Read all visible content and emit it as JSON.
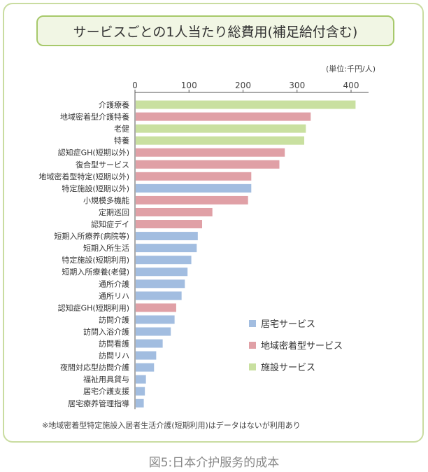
{
  "title": "サービスごとの1人当たり総費用(補足給付含む)",
  "unit_label": "(単位:千円/人)",
  "footnote": "※地域密着型特定施設入居者生活介護(短期利用)はデータはないが利用あり",
  "caption": "図5:日本介护服务的成本",
  "colors": {
    "home": "#a2bde0",
    "community": "#e0a0a6",
    "facility": "#c9e0a0",
    "title_border": "#a7c96b",
    "card_border": "#c9dca0"
  },
  "legend": [
    {
      "key": "home",
      "label": "居宅サービス"
    },
    {
      "key": "community",
      "label": "地域密着型サービス"
    },
    {
      "key": "facility",
      "label": "施設サービス"
    }
  ],
  "chart_data": {
    "type": "bar",
    "orientation": "horizontal",
    "title": "サービスごとの1人当たり総費用(補足給付含む)",
    "unit": "千円/人",
    "xlim": [
      0,
      440
    ],
    "xticks": [
      0,
      100,
      200,
      300,
      400
    ],
    "legend_position": "bottom-right",
    "grid": false,
    "categories": [
      "介護療養",
      "地域密着型介護特養",
      "老健",
      "特養",
      "認知症GH(短期以外)",
      "復合型サービス",
      "地域密着型特定(短期以外)",
      "特定施設(短期以外)",
      "小規模多機能",
      "定期巡回",
      "認知症デイ",
      "短期入所療养(病院等)",
      "短期入所生活",
      "特定施設(短期利用)",
      "短期入所療養(老健)",
      "通所介護",
      "通所リハ",
      "認知症GH(短期利用)",
      "訪問介護",
      "訪問入浴介護",
      "訪問看護",
      "訪問リハ",
      "夜間対応型訪問介護",
      "福祉用具貸与",
      "居宅介護支援",
      "居宅療养管理指導"
    ],
    "values": [
      407,
      324,
      315,
      312,
      276,
      266,
      214,
      214,
      208,
      142,
      123,
      115,
      113,
      103,
      96,
      91,
      85,
      75,
      72,
      65,
      50,
      38,
      34,
      19,
      17,
      15
    ],
    "groups": [
      "facility",
      "community",
      "facility",
      "facility",
      "community",
      "community",
      "community",
      "home",
      "community",
      "community",
      "community",
      "home",
      "home",
      "home",
      "home",
      "home",
      "home",
      "community",
      "home",
      "home",
      "home",
      "home",
      "home",
      "home",
      "home",
      "home"
    ]
  }
}
